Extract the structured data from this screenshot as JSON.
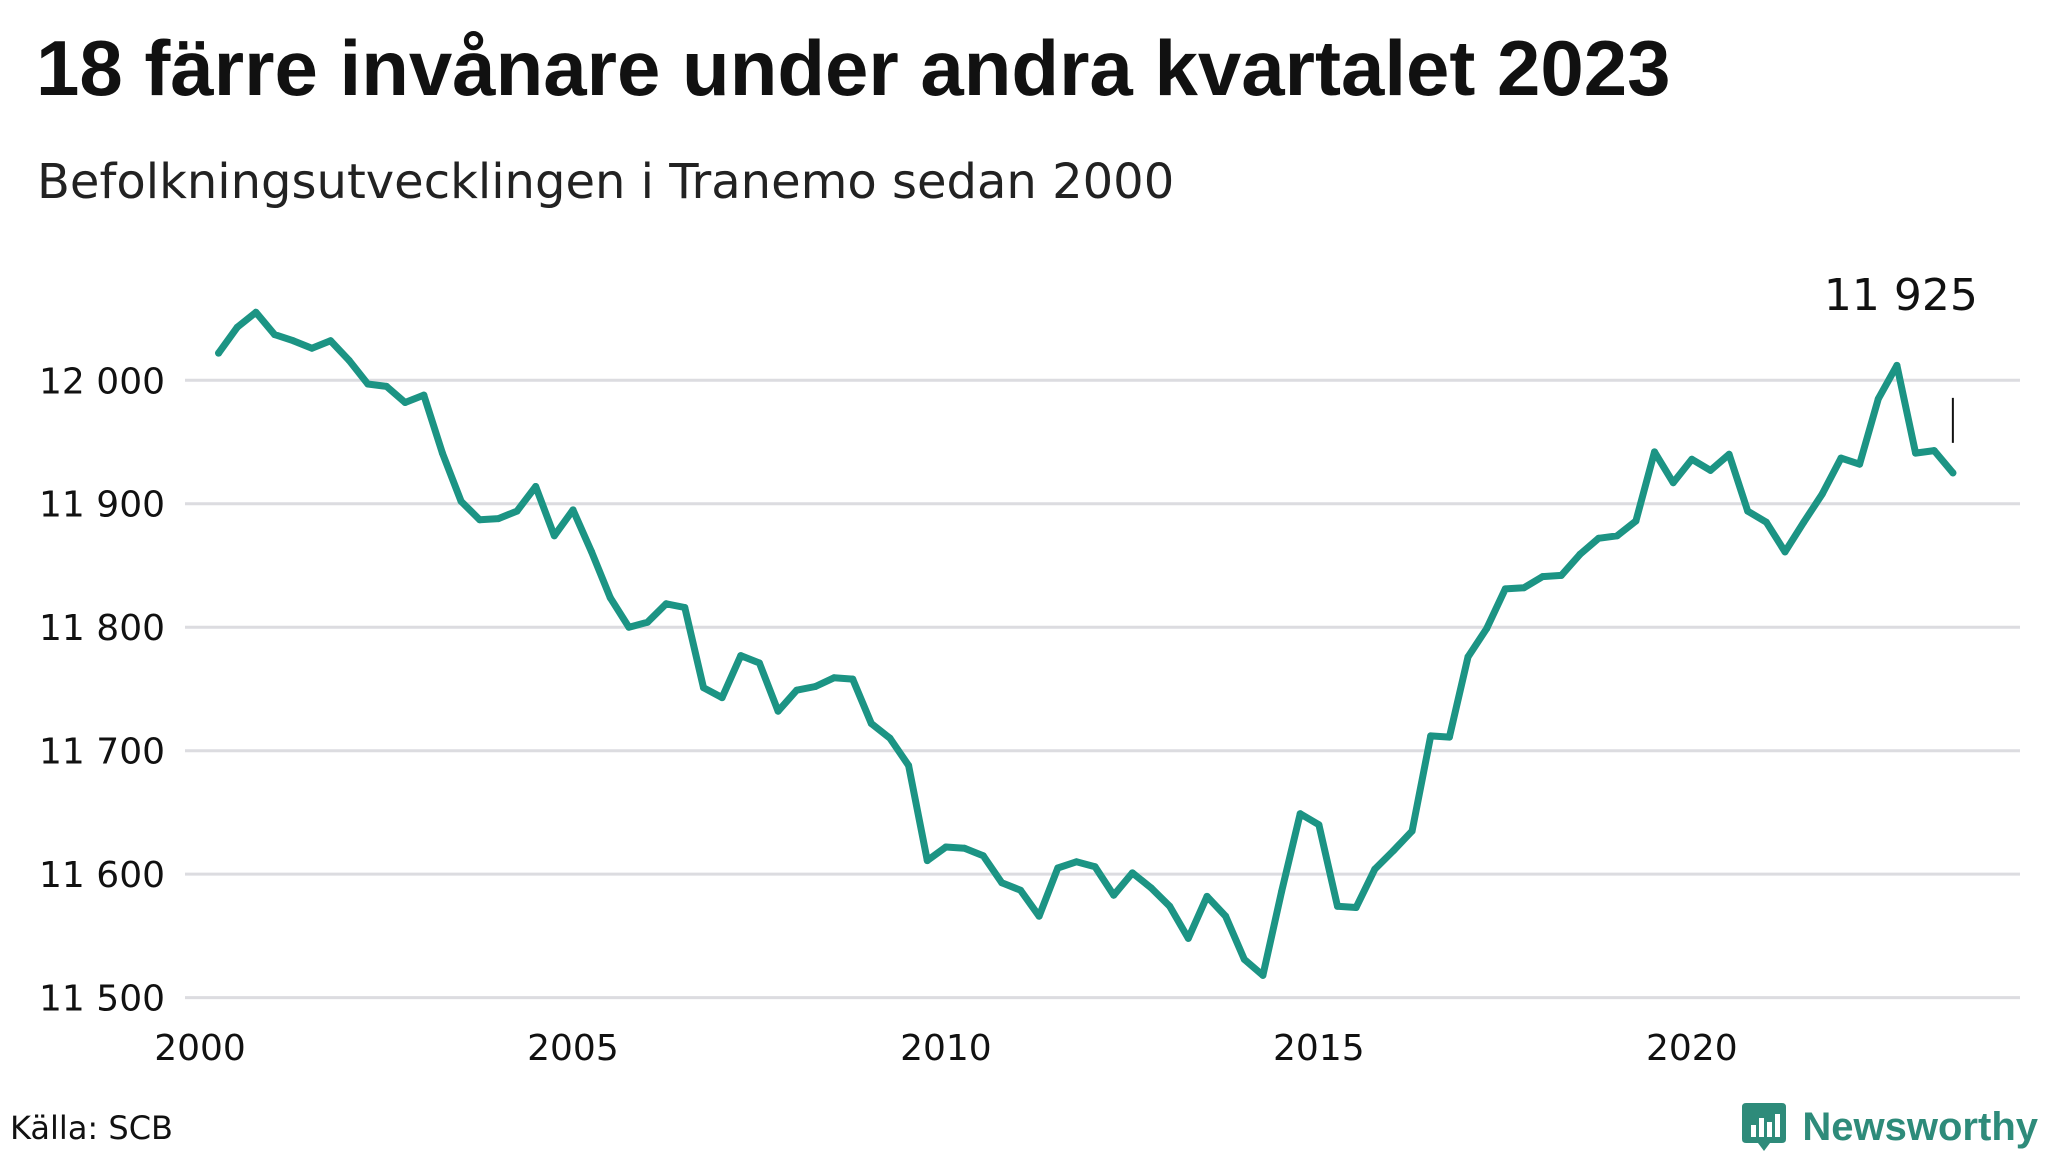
{
  "title": "18 färre invånare under andra kvartalet 2023",
  "subtitle": "Befolkningsutvecklingen i Tranemo sedan 2000",
  "source": "Källa: SCB",
  "brand": {
    "name": "Newsworthy",
    "icon": "newsworthy-logo-icon",
    "color": "#2e8b7a"
  },
  "chart_data": {
    "type": "line",
    "title": "18 färre invånare under andra kvartalet 2023",
    "subtitle": "Befolkningsutvecklingen i Tranemo sedan 2000",
    "xlabel": "",
    "ylabel": "",
    "xlim": [
      2000,
      2024.4
    ],
    "ylim": [
      11490,
      12065
    ],
    "y_ticks": [
      11500,
      11600,
      11700,
      11800,
      11900,
      12000
    ],
    "y_tick_labels": [
      "11 500",
      "11 600",
      "11 700",
      "11 800",
      "11 900",
      "12 000"
    ],
    "x_ticks": [
      2000,
      2005,
      2010,
      2015,
      2020
    ],
    "x_tick_labels": [
      "2000",
      "2005",
      "2010",
      "2015",
      "2020"
    ],
    "grid": "horizontal",
    "line_color": "#1c9484",
    "end_label": "11 925",
    "series": [
      {
        "x": [
          2000.25,
          2000.5,
          2000.75,
          2001.0,
          2001.25,
          2001.5,
          2001.75,
          2002.0,
          2002.25,
          2002.5,
          2002.75,
          2003.0,
          2003.25,
          2003.5,
          2003.75,
          2004.0,
          2004.25,
          2004.5,
          2004.75,
          2005.0,
          2005.25,
          2005.5,
          2005.75,
          2006.0,
          2006.25,
          2006.5,
          2006.75,
          2007.0,
          2007.25,
          2007.5,
          2007.75,
          2008.0,
          2008.25,
          2008.5,
          2008.75,
          2009.0,
          2009.25,
          2009.5,
          2009.75,
          2010.0,
          2010.25,
          2010.5,
          2010.75,
          2011.0,
          2011.25,
          2011.5,
          2011.75,
          2012.0,
          2012.25,
          2012.5,
          2012.75,
          2013.0,
          2013.25,
          2013.5,
          2013.75,
          2014.0,
          2014.25,
          2014.5,
          2014.75,
          2015.0,
          2015.25,
          2015.5,
          2015.75,
          2016.0,
          2016.25,
          2016.5,
          2016.75,
          2017.0,
          2017.25,
          2017.5,
          2017.75,
          2018.0,
          2018.25,
          2018.5,
          2018.75,
          2019.0,
          2019.25,
          2019.5,
          2019.75,
          2020.0,
          2020.25,
          2020.5,
          2020.75,
          2021.0,
          2021.25,
          2021.5,
          2021.75,
          2022.0,
          2022.25,
          2022.5,
          2022.75,
          2023.0,
          2023.25,
          2023.5
        ],
        "values": [
          12022,
          12043,
          12055,
          12037,
          12032,
          12026,
          12032,
          12016,
          11997,
          11995,
          11982,
          11988,
          11941,
          11902,
          11887,
          11888,
          11894,
          11914,
          11874,
          11895,
          11861,
          11824,
          11800,
          11804,
          11819,
          11816,
          11751,
          11743,
          11777,
          11771,
          11732,
          11749,
          11752,
          11759,
          11758,
          11722,
          11710,
          11688,
          11611,
          11622,
          11621,
          11615,
          11593,
          11587,
          11566,
          11605,
          11610,
          11606,
          11583,
          11601,
          11589,
          11574,
          11548,
          11582,
          11566,
          11531,
          11518,
          11586,
          11649,
          11640,
          11574,
          11573,
          11604,
          11619,
          11635,
          11712,
          11711,
          11776,
          11799,
          11831,
          11832,
          11841,
          11842,
          11859,
          11872,
          11874,
          11886,
          11942,
          11917,
          11936,
          11927,
          11940,
          11894,
          11885,
          11861,
          11885,
          11908,
          11937,
          11932,
          11985,
          12012,
          11941,
          11943,
          11925
        ]
      }
    ]
  }
}
